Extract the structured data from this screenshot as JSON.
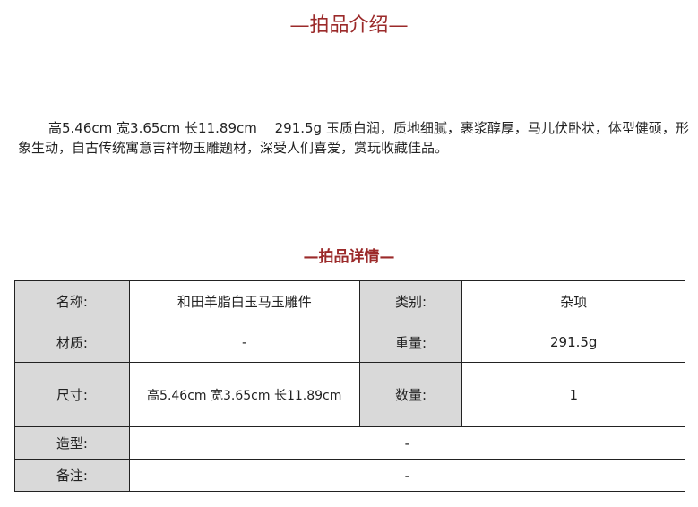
{
  "intro_section": {
    "title": "—拍品介绍—",
    "description": "高5.46cm 宽3.65cm 长11.89cm　 291.5g 玉质白润，质地细腻，裹浆醇厚，马儿伏卧状，体型健硕，形象生动，自古传统寓意吉祥物玉雕题材，深受人们喜爱，赏玩收藏佳品。"
  },
  "details_section": {
    "title": "—拍品详情—",
    "name_label": "名称:",
    "name_value": "和田羊脂白玉马玉雕件",
    "category_label": "类别:",
    "category_value": "杂项",
    "material_label": "材质:",
    "material_value": "-",
    "weight_label": "重量:",
    "weight_value": "291.5g",
    "size_label": "尺寸:",
    "size_value": "高5.46cm 宽3.65cm 长11.89cm",
    "quantity_label": "数量:",
    "quantity_value": "1",
    "shape_label": "造型:",
    "shape_value": "-",
    "remark_label": "备注:",
    "remark_value": "-"
  },
  "colors": {
    "accent": "#9b2a2a",
    "label_bg": "#d9d9d9"
  }
}
